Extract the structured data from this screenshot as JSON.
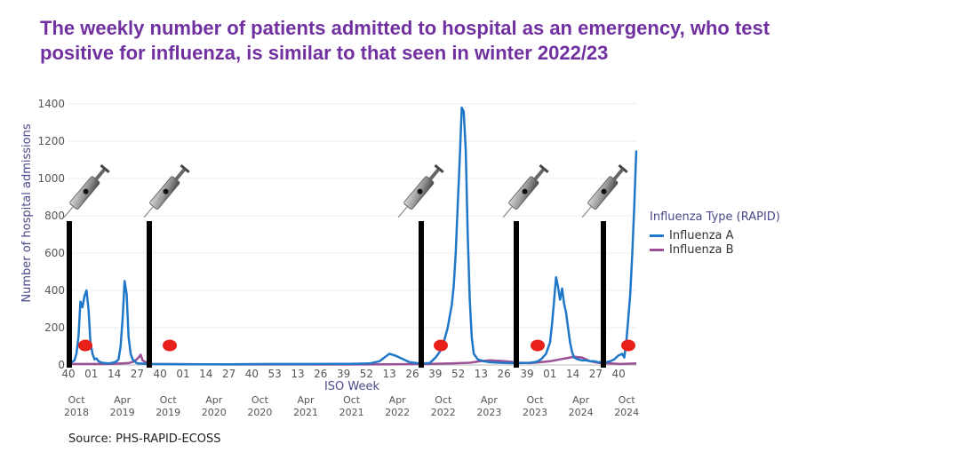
{
  "title_line1": "The weekly number of patients admitted to hospital as an emergency, who test",
  "title_line2": "positive for influenza, is similar to that seen in winter 2022/23",
  "source": "Source: PHS-RAPID-ECOSS",
  "colors": {
    "title": "#7030a0",
    "influenza_a": "#1f77c8",
    "influenza_b": "#9b4f96",
    "marker": "#e8201a"
  },
  "chart_data": {
    "type": "line",
    "title": "The weekly number of patients admitted to hospital as an emergency, who test positive for influenza, is similar to that seen in winter 2022/23",
    "ylabel": "Number of hospital admissions",
    "xlabel": "ISO Week",
    "ylim": [
      0,
      1400
    ],
    "yticks": [
      0,
      200,
      400,
      600,
      800,
      1000,
      1200,
      1400
    ],
    "xticks": [
      "40",
      "01",
      "14",
      "27",
      "40",
      "01",
      "14",
      "27",
      "40",
      "53",
      "13",
      "26",
      "39",
      "52",
      "13",
      "26",
      "39",
      "52",
      "13",
      "26",
      "39",
      "01",
      "14",
      "27",
      "40"
    ],
    "date_labels": [
      {
        "month": "Oct",
        "year": "2018"
      },
      {
        "month": "Apr",
        "year": "2019"
      },
      {
        "month": "Oct",
        "year": "2019"
      },
      {
        "month": "Apr",
        "year": "2020"
      },
      {
        "month": "Oct",
        "year": "2020"
      },
      {
        "month": "Apr",
        "year": "2021"
      },
      {
        "month": "Oct",
        "year": "2021"
      },
      {
        "month": "Apr",
        "year": "2022"
      },
      {
        "month": "Oct",
        "year": "2022"
      },
      {
        "month": "Apr",
        "year": "2023"
      },
      {
        "month": "Oct",
        "year": "2023"
      },
      {
        "month": "Apr",
        "year": "2024"
      },
      {
        "month": "Oct",
        "year": "2024"
      }
    ],
    "legend_title": "Influenza Type (RAPID)",
    "legend_position": "right",
    "series": [
      {
        "name": "Influenza A",
        "color": "#1f77c8",
        "points": [
          [
            0,
            20
          ],
          [
            1,
            15
          ],
          [
            2,
            18
          ],
          [
            3,
            25
          ],
          [
            4,
            60
          ],
          [
            5,
            150
          ],
          [
            6,
            340
          ],
          [
            7,
            310
          ],
          [
            8,
            370
          ],
          [
            9,
            400
          ],
          [
            10,
            300
          ],
          [
            11,
            120
          ],
          [
            12,
            60
          ],
          [
            13,
            30
          ],
          [
            14,
            35
          ],
          [
            15,
            20
          ],
          [
            16,
            15
          ],
          [
            17,
            12
          ],
          [
            18,
            10
          ],
          [
            19,
            10
          ],
          [
            20,
            8
          ],
          [
            21,
            10
          ],
          [
            22,
            12
          ],
          [
            23,
            15
          ],
          [
            24,
            20
          ],
          [
            25,
            30
          ],
          [
            26,
            100
          ],
          [
            27,
            250
          ],
          [
            28,
            450
          ],
          [
            29,
            380
          ],
          [
            30,
            150
          ],
          [
            31,
            60
          ],
          [
            32,
            30
          ],
          [
            33,
            20
          ],
          [
            34,
            10
          ],
          [
            35,
            8
          ],
          [
            40,
            5
          ],
          [
            60,
            4
          ],
          [
            80,
            4
          ],
          [
            100,
            5
          ],
          [
            120,
            5
          ],
          [
            140,
            6
          ],
          [
            150,
            8
          ],
          [
            155,
            20
          ],
          [
            158,
            45
          ],
          [
            160,
            60
          ],
          [
            163,
            50
          ],
          [
            166,
            35
          ],
          [
            170,
            15
          ],
          [
            175,
            8
          ],
          [
            180,
            10
          ],
          [
            181,
            20
          ],
          [
            183,
            40
          ],
          [
            185,
            70
          ],
          [
            187,
            120
          ],
          [
            189,
            200
          ],
          [
            190,
            260
          ],
          [
            191,
            320
          ],
          [
            192,
            420
          ],
          [
            193,
            600
          ],
          [
            194,
            850
          ],
          [
            195,
            1100
          ],
          [
            196,
            1380
          ],
          [
            197,
            1360
          ],
          [
            198,
            1150
          ],
          [
            199,
            700
          ],
          [
            200,
            350
          ],
          [
            201,
            150
          ],
          [
            202,
            60
          ],
          [
            204,
            30
          ],
          [
            207,
            20
          ],
          [
            210,
            15
          ],
          [
            215,
            12
          ],
          [
            220,
            10
          ],
          [
            225,
            10
          ],
          [
            230,
            12
          ],
          [
            232,
            15
          ],
          [
            234,
            20
          ],
          [
            236,
            35
          ],
          [
            238,
            60
          ],
          [
            240,
            120
          ],
          [
            241,
            220
          ],
          [
            242,
            340
          ],
          [
            243,
            470
          ],
          [
            244,
            420
          ],
          [
            245,
            350
          ],
          [
            246,
            410
          ],
          [
            247,
            330
          ],
          [
            248,
            280
          ],
          [
            249,
            200
          ],
          [
            250,
            120
          ],
          [
            251,
            70
          ],
          [
            252,
            40
          ],
          [
            254,
            30
          ],
          [
            256,
            25
          ],
          [
            258,
            25
          ],
          [
            260,
            20
          ],
          [
            262,
            20
          ],
          [
            264,
            15
          ],
          [
            266,
            15
          ],
          [
            268,
            15
          ],
          [
            270,
            20
          ],
          [
            272,
            30
          ],
          [
            274,
            50
          ],
          [
            276,
            60
          ],
          [
            277,
            40
          ],
          [
            278,
            120
          ],
          [
            279,
            250
          ],
          [
            280,
            380
          ],
          [
            281,
            600
          ],
          [
            282,
            850
          ],
          [
            283,
            1150
          ]
        ]
      },
      {
        "name": "Influenza B",
        "color": "#9b4f96",
        "points": [
          [
            0,
            5
          ],
          [
            10,
            5
          ],
          [
            20,
            5
          ],
          [
            30,
            10
          ],
          [
            33,
            20
          ],
          [
            35,
            40
          ],
          [
            36,
            55
          ],
          [
            37,
            25
          ],
          [
            40,
            5
          ],
          [
            80,
            3
          ],
          [
            120,
            3
          ],
          [
            150,
            3
          ],
          [
            180,
            5
          ],
          [
            190,
            8
          ],
          [
            200,
            12
          ],
          [
            205,
            20
          ],
          [
            210,
            25
          ],
          [
            215,
            22
          ],
          [
            220,
            18
          ],
          [
            225,
            12
          ],
          [
            230,
            10
          ],
          [
            235,
            15
          ],
          [
            240,
            20
          ],
          [
            245,
            30
          ],
          [
            250,
            40
          ],
          [
            252,
            45
          ],
          [
            254,
            42
          ],
          [
            256,
            40
          ],
          [
            258,
            30
          ],
          [
            260,
            20
          ],
          [
            265,
            10
          ],
          [
            270,
            8
          ],
          [
            275,
            5
          ],
          [
            283,
            8
          ]
        ]
      }
    ],
    "annotations": {
      "season_markers": [
        "Oct 2018",
        "Oct 2019",
        "Oct 2022",
        "Oct 2023",
        "Oct 2024"
      ]
    }
  }
}
